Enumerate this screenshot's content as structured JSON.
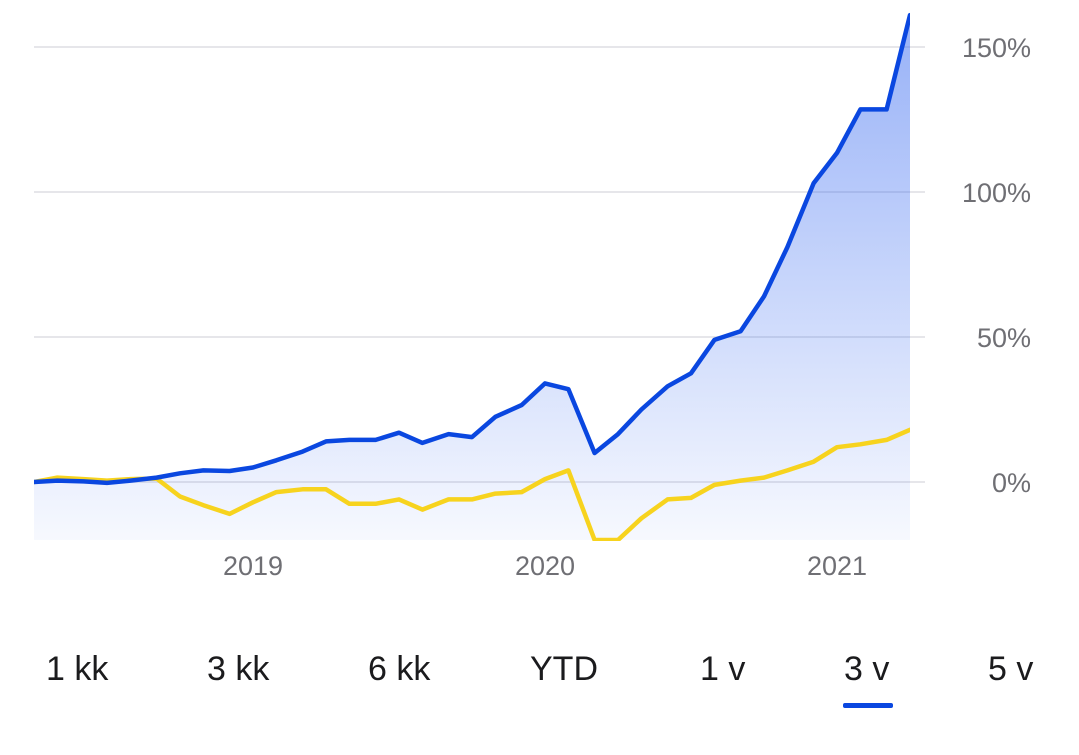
{
  "chart_data": {
    "type": "area",
    "x_tick_labels": [
      "2019",
      "2020",
      "2021"
    ],
    "y_tick_labels": [
      "150%",
      "100%",
      "50%",
      "0%"
    ],
    "y_ticks": [
      150,
      100,
      50,
      0
    ],
    "ylim": [
      -20,
      160
    ],
    "xlim": [
      2018.25,
      2021.25
    ],
    "grid": true,
    "series": [
      {
        "color": "#0a47e0",
        "fill": true,
        "points": [
          [
            2018.25,
            0
          ],
          [
            2018.33,
            0.5
          ],
          [
            2018.42,
            0.2
          ],
          [
            2018.5,
            -0.3
          ],
          [
            2018.58,
            0.5
          ],
          [
            2018.67,
            1.5
          ],
          [
            2018.75,
            3
          ],
          [
            2018.83,
            4
          ],
          [
            2018.92,
            3.8
          ],
          [
            2019.0,
            5
          ],
          [
            2019.08,
            7.5
          ],
          [
            2019.17,
            10.5
          ],
          [
            2019.25,
            14
          ],
          [
            2019.33,
            14.5
          ],
          [
            2019.42,
            14.5
          ],
          [
            2019.5,
            17
          ],
          [
            2019.58,
            13.5
          ],
          [
            2019.67,
            16.5
          ],
          [
            2019.75,
            15.5
          ],
          [
            2019.83,
            22.5
          ],
          [
            2019.92,
            26.5
          ],
          [
            2020.0,
            34
          ],
          [
            2020.08,
            32
          ],
          [
            2020.17,
            10
          ],
          [
            2020.25,
            16.5
          ],
          [
            2020.33,
            25
          ],
          [
            2020.42,
            33
          ],
          [
            2020.5,
            37.5
          ],
          [
            2020.58,
            49
          ],
          [
            2020.67,
            52
          ],
          [
            2020.75,
            64
          ],
          [
            2020.83,
            81
          ],
          [
            2020.92,
            103
          ],
          [
            2021.0,
            113.5
          ],
          [
            2021.08,
            128.5
          ],
          [
            2021.17,
            128.5
          ],
          [
            2021.25,
            161
          ]
        ]
      },
      {
        "color": "#f7d31e",
        "fill": false,
        "points": [
          [
            2018.25,
            0
          ],
          [
            2018.33,
            1.5
          ],
          [
            2018.42,
            1
          ],
          [
            2018.5,
            0.5
          ],
          [
            2018.58,
            1
          ],
          [
            2018.67,
            1.2
          ],
          [
            2018.75,
            -5
          ],
          [
            2018.83,
            -8
          ],
          [
            2018.92,
            -11
          ],
          [
            2019.0,
            -7
          ],
          [
            2019.08,
            -3.5
          ],
          [
            2019.17,
            -2.5
          ],
          [
            2019.25,
            -2.5
          ],
          [
            2019.33,
            -7.5
          ],
          [
            2019.42,
            -7.5
          ],
          [
            2019.5,
            -6
          ],
          [
            2019.58,
            -9.5
          ],
          [
            2019.67,
            -6
          ],
          [
            2019.75,
            -6
          ],
          [
            2019.83,
            -4
          ],
          [
            2019.92,
            -3.5
          ],
          [
            2020.0,
            1
          ],
          [
            2020.08,
            4
          ],
          [
            2020.17,
            -20
          ],
          [
            2020.25,
            -20
          ],
          [
            2020.33,
            -12.5
          ],
          [
            2020.42,
            -6
          ],
          [
            2020.5,
            -5.5
          ],
          [
            2020.58,
            -1
          ],
          [
            2020.67,
            0.5
          ],
          [
            2020.75,
            1.5
          ],
          [
            2020.83,
            4
          ],
          [
            2020.92,
            7
          ],
          [
            2021.0,
            12
          ],
          [
            2021.08,
            13
          ],
          [
            2021.17,
            14.5
          ],
          [
            2021.25,
            18
          ]
        ]
      }
    ]
  },
  "range_selector": {
    "options": [
      "1 kk",
      "3 kk",
      "6 kk",
      "YTD",
      "1 v",
      "3 v",
      "5 v"
    ],
    "selected": "3 v"
  },
  "colors": {
    "primary_line": "#0a47e0",
    "secondary_line": "#f7d31e",
    "grid": "#e6e6ea",
    "tick_text": "#6f6f74",
    "selector_underline": "#0a47e0"
  }
}
